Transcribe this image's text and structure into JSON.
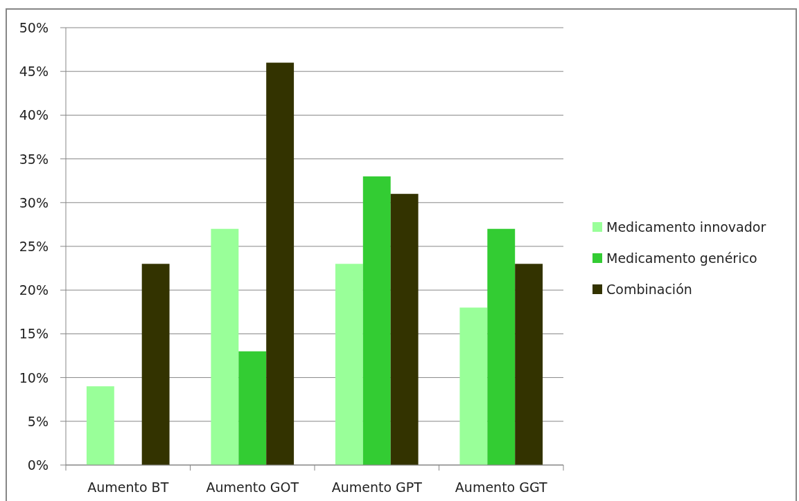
{
  "chart_data": {
    "type": "bar",
    "categories": [
      "Aumento BT",
      "Aumento GOT",
      "Aumento GPT",
      "Aumento GGT"
    ],
    "series": [
      {
        "name": "Medicamento innovador",
        "color": "#99ff99",
        "values": [
          9,
          27,
          23,
          18
        ]
      },
      {
        "name": "Medicamento genérico",
        "color": "#33cc33",
        "values": [
          null,
          13,
          33,
          27
        ]
      },
      {
        "name": "Combinación",
        "color": "#333300",
        "values": [
          23,
          46,
          31,
          23
        ]
      }
    ],
    "ylim": [
      0,
      50
    ],
    "yticks": [
      {
        "value": 0,
        "label": "0%"
      },
      {
        "value": 5,
        "label": "5%"
      },
      {
        "value": 10,
        "label": "10%"
      },
      {
        "value": 15,
        "label": "15%"
      },
      {
        "value": 20,
        "label": "20%"
      },
      {
        "value": 25,
        "label": "25%"
      },
      {
        "value": 30,
        "label": "30%"
      },
      {
        "value": 35,
        "label": "35%"
      },
      {
        "value": 40,
        "label": "40%"
      },
      {
        "value": 45,
        "label": "45%"
      },
      {
        "value": 50,
        "label": "50%"
      }
    ],
    "grid": "y",
    "legend": "right"
  }
}
